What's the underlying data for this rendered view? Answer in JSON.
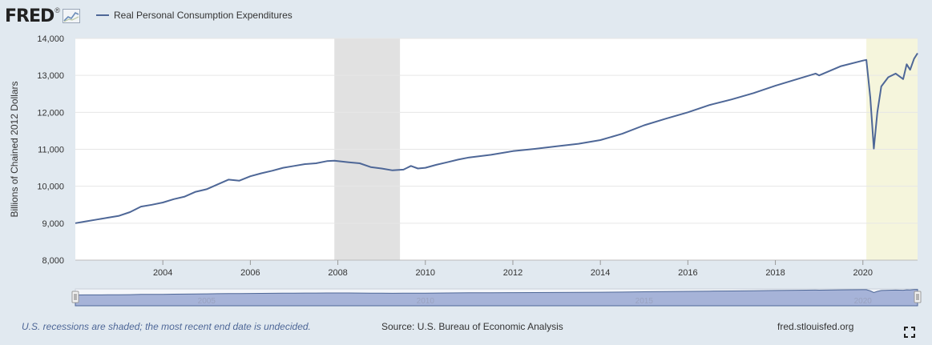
{
  "header": {
    "logo_text": "FRED",
    "logo_mark": "®",
    "logo_icon": "line-graph-icon"
  },
  "footer": {
    "note": "U.S. recessions are shaded; the most recent end date is undecided.",
    "source": "Source: U.S. Bureau of Economic Analysis",
    "url": "fred.stlouisfed.org",
    "fullscreen_icon": "expand-icon"
  },
  "colors": {
    "series": "#4e6797",
    "recession": "#e1e1e1",
    "recent_recession": "#f5f5dc",
    "background": "#e1e9f0",
    "plot": "#ffffff",
    "navigator": "#a6b3d8"
  },
  "chart_data": {
    "type": "line",
    "ylabel": "Billions of Chained 2012 Dollars",
    "xlabel": "",
    "xlim": [
      2002.0,
      2021.25
    ],
    "ylim": [
      8000,
      14000
    ],
    "y_ticks": [
      8000,
      9000,
      10000,
      11000,
      12000,
      13000,
      14000
    ],
    "y_tick_labels": [
      "8,000",
      "9,000",
      "10,000",
      "11,000",
      "12,000",
      "13,000",
      "14,000"
    ],
    "x_ticks": [
      2004,
      2006,
      2008,
      2010,
      2012,
      2014,
      2016,
      2018,
      2020
    ],
    "x_tick_labels": [
      "2004",
      "2006",
      "2008",
      "2010",
      "2012",
      "2014",
      "2016",
      "2018",
      "2020"
    ],
    "grid": "horizontal",
    "recessions": [
      {
        "start": 2007.92,
        "end": 2009.42,
        "style": "gray"
      },
      {
        "start": 2020.08,
        "end": 2021.25,
        "style": "recent"
      }
    ],
    "navigator_labels": [
      "2005",
      "2010",
      "2015",
      "2020"
    ],
    "series": [
      {
        "name": "Real Personal Consumption Expenditures",
        "x": [
          2002.0,
          2002.25,
          2002.5,
          2002.75,
          2003.0,
          2003.25,
          2003.5,
          2003.75,
          2004.0,
          2004.25,
          2004.5,
          2004.75,
          2005.0,
          2005.25,
          2005.5,
          2005.75,
          2006.0,
          2006.25,
          2006.5,
          2006.75,
          2007.0,
          2007.25,
          2007.5,
          2007.75,
          2007.92,
          2008.25,
          2008.5,
          2008.75,
          2009.0,
          2009.25,
          2009.5,
          2009.67,
          2009.83,
          2010.0,
          2010.25,
          2010.5,
          2010.75,
          2011.0,
          2011.5,
          2012.0,
          2012.5,
          2013.0,
          2013.5,
          2014.0,
          2014.5,
          2015.0,
          2015.5,
          2016.0,
          2016.5,
          2017.0,
          2017.5,
          2018.0,
          2018.5,
          2018.92,
          2019.0,
          2019.5,
          2020.0,
          2020.08,
          2020.17,
          2020.25,
          2020.33,
          2020.42,
          2020.58,
          2020.75,
          2020.92,
          2021.0,
          2021.08,
          2021.17,
          2021.25
        ],
        "values": [
          9000,
          9050,
          9100,
          9150,
          9200,
          9300,
          9450,
          9500,
          9560,
          9650,
          9720,
          9850,
          9920,
          10050,
          10180,
          10150,
          10270,
          10350,
          10420,
          10500,
          10550,
          10600,
          10620,
          10680,
          10690,
          10650,
          10620,
          10520,
          10480,
          10430,
          10450,
          10550,
          10480,
          10500,
          10580,
          10650,
          10720,
          10780,
          10850,
          10950,
          11010,
          11080,
          11150,
          11250,
          11420,
          11650,
          11830,
          12000,
          12200,
          12350,
          12520,
          12720,
          12900,
          13050,
          13000,
          13250,
          13400,
          13420,
          12400,
          11020,
          12000,
          12700,
          12950,
          13050,
          12900,
          13300,
          13150,
          13450,
          13600
        ]
      }
    ]
  }
}
